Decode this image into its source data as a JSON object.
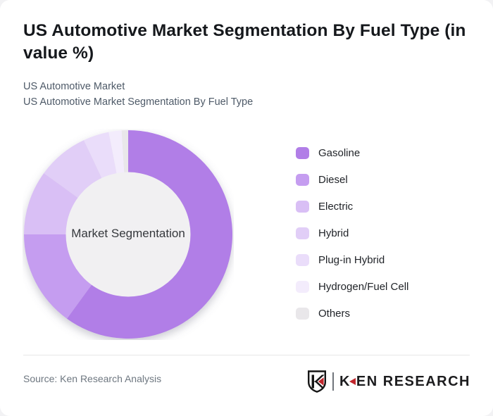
{
  "header": {
    "title": "US Automotive Market Segmentation By Fuel Type (in value %)",
    "subtitle_lines": [
      "US Automotive Market",
      "US Automotive Market Segmentation By Fuel Type"
    ]
  },
  "chart_data": {
    "type": "pie",
    "subtype": "donut",
    "title": "US Automotive Market Segmentation By Fuel Type (in value %)",
    "center_label": "Market Segmentation",
    "categories": [
      "Gasoline",
      "Diesel",
      "Electric",
      "Hybrid",
      "Plug-in Hybrid",
      "Hydrogen/Fuel Cell",
      "Others"
    ],
    "values": [
      60,
      15,
      10,
      8,
      4,
      2,
      1
    ],
    "unit": "%",
    "start_angle_deg": 0,
    "direction": "clockwise",
    "legend_position": "right",
    "data_labels": "none",
    "colors": [
      "#b17ee7",
      "#c59df0",
      "#d9bff5",
      "#e1cef7",
      "#eadDfa",
      "#f3ecfc",
      "#e9e7ea"
    ],
    "center_fill": "#f1f0f2"
  },
  "footer": {
    "source": "Source: Ken Research Analysis",
    "brand_k": "K",
    "brand_rest": "EN RESEARCH",
    "brand_full": "KEN RESEARCH",
    "brand_accent": "#c1272d"
  }
}
